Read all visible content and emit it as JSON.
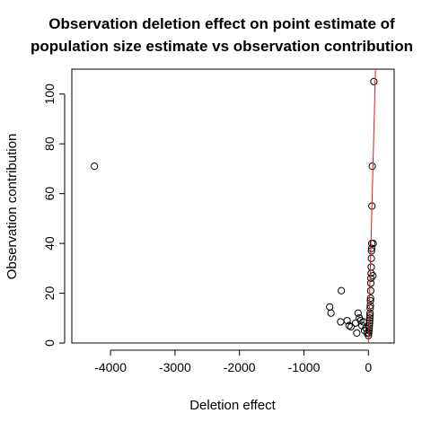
{
  "chart_data": {
    "type": "scatter",
    "title": "Observation deletion effect on point estimate of\npopulation size estimate vs observation contribution",
    "xlabel": "Deletion effect",
    "ylabel": "Observation contribution",
    "xlim": [
      -4600,
      400
    ],
    "ylim": [
      0,
      110
    ],
    "x_ticks": [
      -4000,
      -3000,
      -2000,
      -1000,
      0
    ],
    "y_ticks": [
      0,
      20,
      40,
      60,
      80,
      100
    ],
    "grid": false,
    "legend": "none",
    "point_color": "#000000",
    "line_color": "#e41a1c",
    "reference_line": {
      "intercept": 0,
      "slope": 1
    },
    "points": [
      {
        "x": -4250,
        "y": 71
      },
      {
        "x": -600,
        "y": 14.5
      },
      {
        "x": -580,
        "y": 12
      },
      {
        "x": -420,
        "y": 21
      },
      {
        "x": -430,
        "y": 8.5
      },
      {
        "x": -330,
        "y": 9
      },
      {
        "x": -300,
        "y": 7
      },
      {
        "x": -270,
        "y": 6.5
      },
      {
        "x": -200,
        "y": 8
      },
      {
        "x": -180,
        "y": 4
      },
      {
        "x": -160,
        "y": 12
      },
      {
        "x": -140,
        "y": 10
      },
      {
        "x": -120,
        "y": 9
      },
      {
        "x": -100,
        "y": 7
      },
      {
        "x": -80,
        "y": 8.5
      },
      {
        "x": -60,
        "y": 5
      },
      {
        "x": -40,
        "y": 6
      },
      {
        "x": -20,
        "y": 4
      },
      {
        "x": 0,
        "y": 3
      },
      {
        "x": 5,
        "y": 4
      },
      {
        "x": 10,
        "y": 5
      },
      {
        "x": 12,
        "y": 6
      },
      {
        "x": 15,
        "y": 7
      },
      {
        "x": 18,
        "y": 8
      },
      {
        "x": 20,
        "y": 9
      },
      {
        "x": 22,
        "y": 10
      },
      {
        "x": 24,
        "y": 11
      },
      {
        "x": 26,
        "y": 12
      },
      {
        "x": 28,
        "y": 14
      },
      {
        "x": 30,
        "y": 15
      },
      {
        "x": 32,
        "y": 17
      },
      {
        "x": 34,
        "y": 18
      },
      {
        "x": 36,
        "y": 21
      },
      {
        "x": 38,
        "y": 24
      },
      {
        "x": 40,
        "y": 26
      },
      {
        "x": 42,
        "y": 28
      },
      {
        "x": 44,
        "y": 30.5
      },
      {
        "x": 46,
        "y": 34
      },
      {
        "x": 48,
        "y": 37
      },
      {
        "x": 50,
        "y": 38
      },
      {
        "x": 52,
        "y": 40
      },
      {
        "x": 55,
        "y": 55
      },
      {
        "x": 60,
        "y": 71
      },
      {
        "x": 75,
        "y": 40
      },
      {
        "x": 70,
        "y": 27
      },
      {
        "x": 85,
        "y": 105
      }
    ]
  }
}
